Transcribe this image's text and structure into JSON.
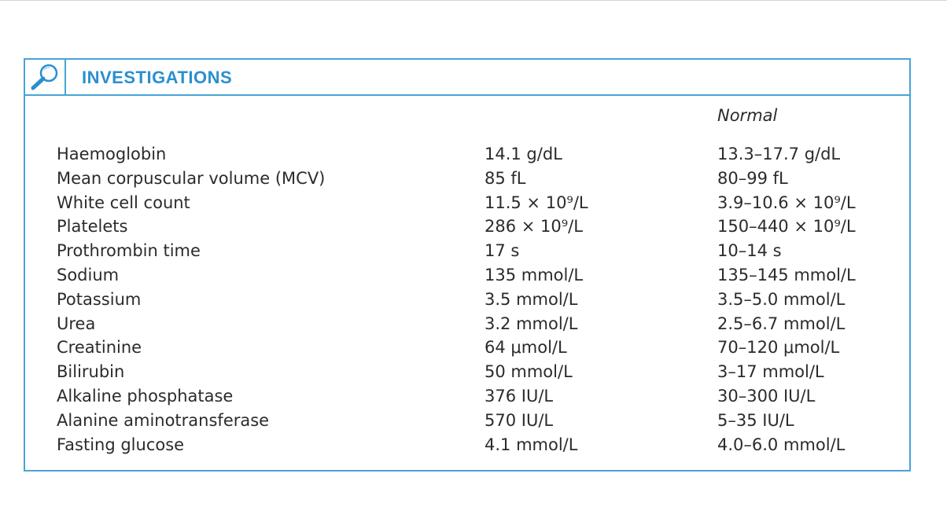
{
  "box": {
    "title": "INVESTIGATIONS",
    "icon": "magnifier-icon",
    "accent_color": "#4aa3d6",
    "title_color": "#2a8fcf"
  },
  "table": {
    "normal_heading": "Normal",
    "rows": [
      {
        "name": "Haemoglobin",
        "value": "14.1 g/dL",
        "normal": "13.3–17.7 g/dL"
      },
      {
        "name": "Mean corpuscular volume (MCV)",
        "value": "85 fL",
        "normal": "80–99 fL"
      },
      {
        "name": "White cell count",
        "value": "11.5 × 10⁹/L",
        "normal": "3.9–10.6 × 10⁹/L"
      },
      {
        "name": "Platelets",
        "value": "286 × 10⁹/L",
        "normal": "150–440 × 10⁹/L"
      },
      {
        "name": "Prothrombin time",
        "value": "17 s",
        "normal": "10–14 s"
      },
      {
        "name": "Sodium",
        "value": "135 mmol/L",
        "normal": "135–145 mmol/L"
      },
      {
        "name": "Potassium",
        "value": "3.5 mmol/L",
        "normal": "3.5–5.0 mmol/L"
      },
      {
        "name": "Urea",
        "value": "3.2 mmol/L",
        "normal": "2.5–6.7 mmol/L"
      },
      {
        "name": "Creatinine",
        "value": "64 μmol/L",
        "normal": "70–120 μmol/L"
      },
      {
        "name": "Bilirubin",
        "value": "50 mmol/L",
        "normal": "3–17 mmol/L"
      },
      {
        "name": "Alkaline phosphatase",
        "value": "376 IU/L",
        "normal": "30–300 IU/L"
      },
      {
        "name": "Alanine aminotransferase",
        "value": "570 IU/L",
        "normal": "5–35 IU/L"
      },
      {
        "name": "Fasting glucose",
        "value": "4.1 mmol/L",
        "normal": "4.0–6.0 mmol/L"
      }
    ]
  }
}
